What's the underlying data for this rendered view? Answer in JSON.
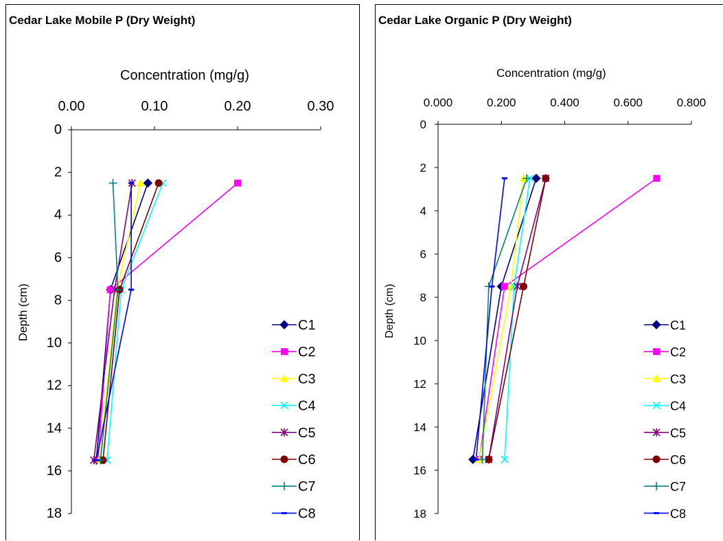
{
  "chart_data": [
    {
      "type": "line",
      "title": "Cedar Lake Mobile P (Dry Weight)",
      "xlabel": "Concentration (mg/g)",
      "ylabel": "Depth (cm)",
      "xlim": [
        0,
        0.3
      ],
      "ylim": [
        0,
        18
      ],
      "x_ticks": [
        "0.00",
        "0.10",
        "0.20",
        "0.30"
      ],
      "x_tick_values": [
        0,
        0.1,
        0.2,
        0.3
      ],
      "y_ticks": [
        "0",
        "2",
        "4",
        "6",
        "8",
        "10",
        "12",
        "14",
        "16",
        "18"
      ],
      "y_tick_values": [
        0,
        2,
        4,
        6,
        8,
        10,
        12,
        14,
        16,
        18
      ],
      "x_axis_position": "top",
      "y_inverted": true,
      "grid": false,
      "legend_position": "bottom-right",
      "depths": [
        2.5,
        7.5,
        15.5
      ],
      "series": [
        {
          "name": "C1",
          "color": "#000080",
          "marker": "diamond",
          "values": [
            0.092,
            0.047,
            0.03
          ]
        },
        {
          "name": "C2",
          "color": "#ff00ff",
          "marker": "square",
          "values": [
            0.2,
            0.047,
            0.032
          ]
        },
        {
          "name": "C3",
          "color": "#ffff00",
          "marker": "triangle",
          "values": [
            0.083,
            0.055,
            0.033
          ]
        },
        {
          "name": "C4",
          "color": "#00ffff",
          "marker": "x",
          "values": [
            0.11,
            0.06,
            0.043
          ]
        },
        {
          "name": "C5",
          "color": "#800080",
          "marker": "star",
          "values": [
            0.073,
            0.052,
            0.027
          ]
        },
        {
          "name": "C6",
          "color": "#800000",
          "marker": "circle",
          "values": [
            0.105,
            0.058,
            0.038
          ]
        },
        {
          "name": "C7",
          "color": "#008080",
          "marker": "plus",
          "values": [
            0.05,
            0.056,
            0.035
          ]
        },
        {
          "name": "C8",
          "color": "#0000ff",
          "marker": "dash",
          "values": [
            0.072,
            0.072,
            0.03
          ]
        }
      ]
    },
    {
      "type": "line",
      "title": "Cedar Lake Organic P (Dry Weight)",
      "xlabel": "Concentration (mg/g)",
      "ylabel": "Depth (cm)",
      "xlim": [
        0,
        0.8
      ],
      "ylim": [
        0,
        18
      ],
      "x_ticks": [
        "0.000",
        "0.200",
        "0.400",
        "0.600",
        "0.800"
      ],
      "x_tick_values": [
        0,
        0.2,
        0.4,
        0.6,
        0.8
      ],
      "y_ticks": [
        "0",
        "2",
        "4",
        "6",
        "8",
        "10",
        "12",
        "14",
        "16",
        "18"
      ],
      "y_tick_values": [
        0,
        2,
        4,
        6,
        8,
        10,
        12,
        14,
        16,
        18
      ],
      "x_axis_position": "top",
      "y_inverted": true,
      "grid": false,
      "legend_position": "bottom-right",
      "depths": [
        2.5,
        7.5,
        15.5
      ],
      "series": [
        {
          "name": "C1",
          "color": "#000080",
          "marker": "diamond",
          "values": [
            0.31,
            0.2,
            0.11
          ]
        },
        {
          "name": "C2",
          "color": "#ff00ff",
          "marker": "square",
          "values": [
            0.69,
            0.21,
            0.13
          ]
        },
        {
          "name": "C3",
          "color": "#ffff00",
          "marker": "triangle",
          "values": [
            0.27,
            0.23,
            0.13
          ]
        },
        {
          "name": "C4",
          "color": "#00ffff",
          "marker": "x",
          "values": [
            0.29,
            0.24,
            0.21
          ]
        },
        {
          "name": "C5",
          "color": "#800080",
          "marker": "star",
          "values": [
            0.34,
            0.25,
            0.16
          ]
        },
        {
          "name": "C6",
          "color": "#800000",
          "marker": "circle",
          "values": [
            0.34,
            0.27,
            0.16
          ]
        },
        {
          "name": "C7",
          "color": "#008080",
          "marker": "plus",
          "values": [
            0.28,
            0.16,
            0.14
          ]
        },
        {
          "name": "C8",
          "color": "#0000ff",
          "marker": "dash",
          "values": [
            0.21,
            0.17,
            0.12
          ]
        }
      ]
    }
  ]
}
